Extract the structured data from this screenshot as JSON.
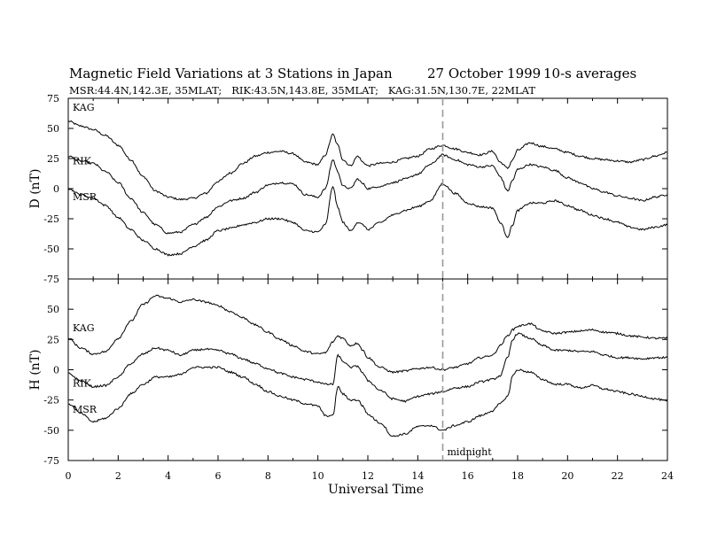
{
  "chart_data": {
    "type": "line",
    "title": "Magnetic Field Variations at 3 Stations in Japan",
    "date": "27 October 1999",
    "averaging": "10-s averages",
    "subtitle": "MSR:44.4N,142.3E, 35MLAT;   RIK:43.5N,143.8E, 35MLAT;   KAG:31.5N,130.7E, 22MLAT",
    "xlabel": "Universal Time",
    "xlim": [
      0,
      24
    ],
    "xticks": [
      "0",
      "2",
      "4",
      "6",
      "8",
      "10",
      "12",
      "14",
      "16",
      "18",
      "20",
      "22",
      "24"
    ],
    "midnight": {
      "x": 15,
      "label": "midnight"
    },
    "panels": [
      {
        "ylabel": "D (nT)",
        "ylim": [
          -75,
          75
        ],
        "yticks": [
          "75",
          "50",
          "25",
          "0",
          "-25",
          "-50",
          "-75"
        ],
        "x": [
          0,
          0.5,
          1,
          1.5,
          2,
          2.5,
          3,
          3.5,
          4,
          4.5,
          5,
          5.5,
          6,
          6.5,
          7,
          7.5,
          8,
          8.5,
          9,
          9.5,
          10,
          10.3,
          10.6,
          10.8,
          11,
          11.3,
          11.6,
          11.8,
          12,
          12.5,
          13,
          13.5,
          14,
          14.5,
          15,
          15.5,
          16,
          16.5,
          17,
          17.3,
          17.6,
          17.8,
          18,
          18.5,
          19,
          19.5,
          20,
          20.5,
          21,
          21.5,
          22,
          22.5,
          23,
          23.5,
          24
        ],
        "series": [
          {
            "name": "KAG",
            "values": [
              56,
              52,
              49,
              44,
              36,
              24,
              10,
              -2,
              -7,
              -9,
              -8,
              -4,
              6,
              13,
              21,
              27,
              30,
              31,
              29,
              22,
              20,
              28,
              45,
              36,
              24,
              19,
              27,
              22,
              19,
              21,
              22,
              25,
              27,
              33,
              36,
              33,
              30,
              28,
              31,
              22,
              17,
              24,
              32,
              38,
              35,
              33,
              30,
              27,
              25,
              24,
              23,
              22,
              24,
              27,
              30
            ]
          },
          {
            "name": "RIK",
            "values": [
              27,
              23,
              21,
              14,
              5,
              -8,
              -20,
              -30,
              -37,
              -36,
              -30,
              -24,
              -15,
              -10,
              -8,
              -3,
              3,
              5,
              4,
              -5,
              -7,
              0,
              24,
              14,
              2,
              0,
              8,
              4,
              0,
              2,
              5,
              8,
              12,
              20,
              28,
              24,
              20,
              18,
              19,
              10,
              -2,
              7,
              16,
              20,
              18,
              15,
              9,
              5,
              0,
              -3,
              -6,
              -8,
              -10,
              -7,
              -5
            ]
          },
          {
            "name": "MSR",
            "values": [
              0,
              -5,
              -8,
              -14,
              -24,
              -34,
              -43,
              -50,
              -55,
              -54,
              -48,
              -43,
              -35,
              -33,
              -30,
              -28,
              -25,
              -25,
              -28,
              -35,
              -36,
              -30,
              2,
              -16,
              -28,
              -35,
              -28,
              -30,
              -34,
              -28,
              -22,
              -18,
              -15,
              -10,
              4,
              -4,
              -12,
              -15,
              -16,
              -28,
              -40,
              -30,
              -18,
              -12,
              -12,
              -10,
              -14,
              -18,
              -22,
              -25,
              -28,
              -32,
              -34,
              -32,
              -30
            ]
          }
        ]
      },
      {
        "ylabel": "H (nT)",
        "ylim": [
          -75,
          75
        ],
        "yticks": [
          "50",
          "25",
          "0",
          "-25",
          "-50",
          "-75"
        ],
        "x": [
          0,
          0.5,
          1,
          1.5,
          2,
          2.5,
          3,
          3.5,
          4,
          4.5,
          5,
          5.5,
          6,
          6.5,
          7,
          7.5,
          8,
          8.5,
          9,
          9.5,
          10,
          10.3,
          10.6,
          10.8,
          11,
          11.3,
          11.6,
          11.8,
          12,
          12.5,
          13,
          13.5,
          14,
          14.5,
          15,
          15.5,
          16,
          16.5,
          17,
          17.3,
          17.6,
          17.8,
          18,
          18.5,
          19,
          19.5,
          20,
          20.5,
          21,
          21.5,
          22,
          22.5,
          23,
          23.5,
          24
        ],
        "series": [
          {
            "name": "KAG",
            "values": [
              26,
              18,
              13,
              15,
              26,
              40,
              54,
              61,
              59,
              56,
              58,
              56,
              53,
              48,
              43,
              37,
              31,
              25,
              20,
              15,
              13,
              14,
              23,
              28,
              26,
              20,
              22,
              16,
              10,
              2,
              -2,
              -1,
              1,
              2,
              0,
              2,
              5,
              10,
              12,
              20,
              28,
              33,
              36,
              38,
              32,
              30,
              31,
              32,
              33,
              31,
              30,
              28,
              27,
              26,
              26
            ]
          },
          {
            "name": "RIK",
            "values": [
              -3,
              -9,
              -14,
              -13,
              -6,
              5,
              13,
              18,
              16,
              12,
              16,
              17,
              16,
              13,
              9,
              5,
              1,
              -3,
              -6,
              -8,
              -10,
              -12,
              -12,
              12,
              7,
              2,
              3,
              -3,
              -9,
              -17,
              -24,
              -26,
              -22,
              -20,
              -18,
              -15,
              -14,
              -10,
              -8,
              -5,
              10,
              25,
              30,
              26,
              20,
              16,
              16,
              15,
              15,
              12,
              10,
              10,
              9,
              10,
              10
            ]
          },
          {
            "name": "MSR",
            "values": [
              -28,
              -36,
              -43,
              -40,
              -32,
              -20,
              -12,
              -6,
              -6,
              -4,
              2,
              2,
              2,
              -2,
              -6,
              -12,
              -18,
              -22,
              -25,
              -28,
              -30,
              -38,
              -38,
              -14,
              -20,
              -25,
              -25,
              -30,
              -37,
              -44,
              -55,
              -53,
              -47,
              -46,
              -50,
              -46,
              -43,
              -38,
              -34,
              -28,
              -22,
              -5,
              0,
              -2,
              -8,
              -12,
              -12,
              -15,
              -13,
              -16,
              -18,
              -20,
              -22,
              -24,
              -26
            ]
          }
        ]
      }
    ]
  }
}
